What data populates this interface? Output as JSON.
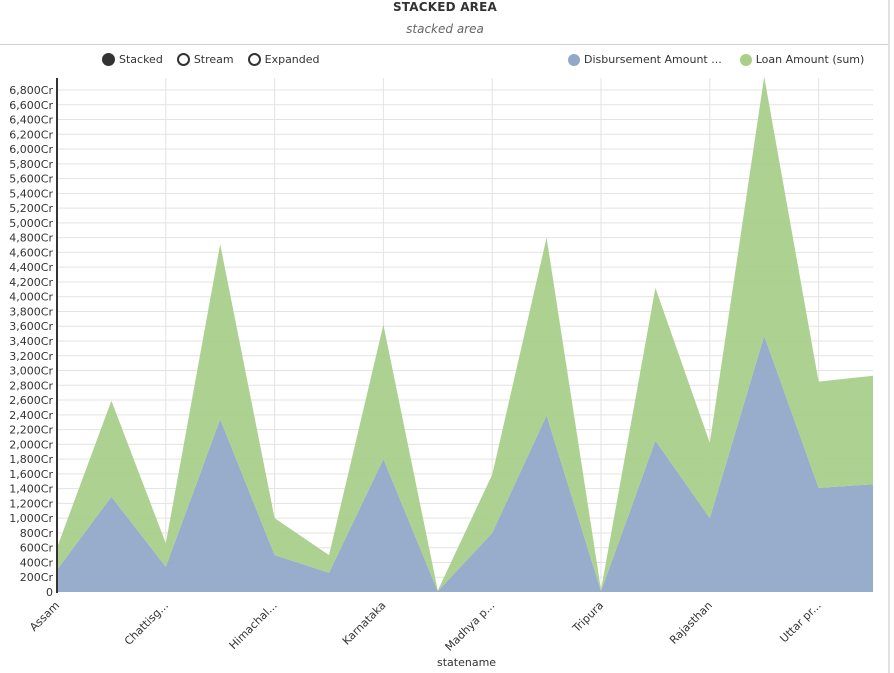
{
  "header": {
    "title": "STACKED AREA",
    "subtitle": "stacked area"
  },
  "controls": [
    {
      "label": "Stacked",
      "selected": true
    },
    {
      "label": "Stream",
      "selected": false
    },
    {
      "label": "Expanded",
      "selected": false
    }
  ],
  "legend": [
    {
      "label": "Disbursement Amount ...",
      "color": "#92a8c9"
    },
    {
      "label": "Loan Amount (sum)",
      "color": "#a9cf8a"
    }
  ],
  "axis": {
    "xlabel": "statename"
  },
  "chart_data": {
    "type": "area",
    "stacked": true,
    "title": "STACKED AREA",
    "subtitle": "stacked area",
    "xlabel": "statename",
    "ylabel": "",
    "ylim": [
      0,
      6800
    ],
    "y_tick_step": 200,
    "y_tick_suffix": "Cr",
    "grid": true,
    "legend_position": "top-right",
    "x_tick_labels": [
      "Assam",
      "Chattisg...",
      "Himachal...",
      "Karnataka",
      "Madhya p...",
      "Tripura",
      "Rajasthan",
      "Uttar pr..."
    ],
    "x": [
      0,
      1,
      2,
      3,
      4,
      5,
      6,
      7,
      8,
      9,
      10,
      11,
      12,
      13,
      14,
      15
    ],
    "series": [
      {
        "name": "Disbursement Amount ...",
        "color": "#92a8c9",
        "values": [
          300,
          1290,
          340,
          2340,
          500,
          260,
          1800,
          10,
          800,
          2390,
          10,
          2050,
          1000,
          3470,
          1410,
          1460
        ]
      },
      {
        "name": "Loan Amount (sum)",
        "color": "#a9cf8a",
        "values": [
          300,
          1300,
          320,
          2370,
          500,
          240,
          1820,
          10,
          790,
          2410,
          20,
          2070,
          1020,
          3510,
          1440,
          1470
        ]
      }
    ]
  }
}
